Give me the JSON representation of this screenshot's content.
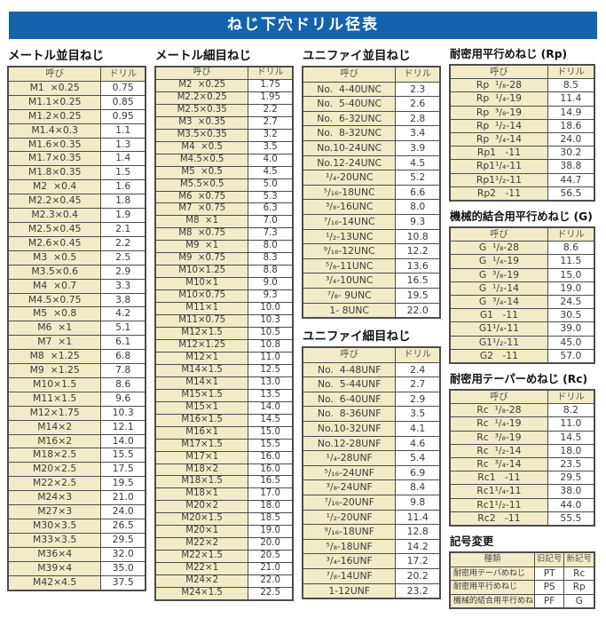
{
  "page_title": "ねじ下穴ドリル径表",
  "tables": {
    "metric_coarse": {
      "title": "メートル並目ねじ",
      "headers": [
        "呼び",
        "ドリル"
      ],
      "rows": [
        [
          "M1  ×0.25",
          "0.75"
        ],
        [
          "M1.1×0.25",
          "0.85"
        ],
        [
          "M1.2×0.25",
          "0.95"
        ],
        [
          "M1.4×0.3",
          "1.1"
        ],
        [
          "M1.6×0.35",
          "1.3"
        ],
        [
          "M1.7×0.35",
          "1.4"
        ],
        [
          "M1.8×0.35",
          "1.5"
        ],
        [
          "M2  ×0.4",
          "1.6"
        ],
        [
          "M2.2×0.45",
          "1.8"
        ],
        [
          "M2.3×0.4",
          "1.9"
        ],
        [
          "M2.5×0.45",
          "2.1"
        ],
        [
          "M2.6×0.45",
          "2.2"
        ],
        [
          "M3  ×0.5",
          "2.5"
        ],
        [
          "M3.5×0.6",
          "2.9"
        ],
        [
          "M4  ×0.7",
          "3.3"
        ],
        [
          "M4.5×0.75",
          "3.8"
        ],
        [
          "M5  ×0.8",
          "4.2"
        ],
        [
          "M6  ×1",
          "5.1"
        ],
        [
          "M7  ×1",
          "6.1"
        ],
        [
          "M8  ×1.25",
          "6.8"
        ],
        [
          "M9  ×1.25",
          "7.8"
        ],
        [
          "M10×1.5",
          "8.6"
        ],
        [
          "M11×1.5",
          "9.6"
        ],
        [
          "M12×1.75",
          "10.3"
        ],
        [
          "M14×2",
          "12.1"
        ],
        [
          "M16×2",
          "14.0"
        ],
        [
          "M18×2.5",
          "15.5"
        ],
        [
          "M20×2.5",
          "17.5"
        ],
        [
          "M22×2.5",
          "19.5"
        ],
        [
          "M24×3",
          "21.0"
        ],
        [
          "M27×3",
          "24.0"
        ],
        [
          "M30×3.5",
          "26.5"
        ],
        [
          "M33×3.5",
          "29.5"
        ],
        [
          "M36×4",
          "32.0"
        ],
        [
          "M39×4",
          "35.0"
        ],
        [
          "M42×4.5",
          "37.5"
        ]
      ]
    },
    "metric_fine": {
      "title": "メートル細目ねじ",
      "headers": [
        "呼び",
        "ドリル"
      ],
      "rows": [
        [
          "M2  ×0.25",
          "1.75"
        ],
        [
          "M2.2×0.25",
          "1.95"
        ],
        [
          "M2.5×0.35",
          "2.2"
        ],
        [
          "M3  ×0.35",
          "2.7"
        ],
        [
          "M3.5×0.35",
          "3.2"
        ],
        [
          "M4  ×0.5",
          "3.5"
        ],
        [
          "M4.5×0.5",
          "4.0"
        ],
        [
          "M5  ×0.5",
          "4.5"
        ],
        [
          "M5.5×0.5",
          "5.0"
        ],
        [
          "M6  ×0.75",
          "5.3"
        ],
        [
          "M7  ×0.75",
          "6.3"
        ],
        [
          "M8  ×1",
          "7.0"
        ],
        [
          "M8  ×0.75",
          "7.3"
        ],
        [
          "M9  ×1",
          "8.0"
        ],
        [
          "M9  ×0.75",
          "8.3"
        ],
        [
          "M10×1.25",
          "8.8"
        ],
        [
          "M10×1",
          "9.0"
        ],
        [
          "M10×0.75",
          "9.3"
        ],
        [
          "M11×1",
          "10.0"
        ],
        [
          "M11×0.75",
          "10.3"
        ],
        [
          "M12×1.5",
          "10.5"
        ],
        [
          "M12×1.25",
          "10.8"
        ],
        [
          "M12×1",
          "11.0"
        ],
        [
          "M14×1.5",
          "12.5"
        ],
        [
          "M14×1",
          "13.0"
        ],
        [
          "M15×1.5",
          "13.5"
        ],
        [
          "M15×1",
          "14.0"
        ],
        [
          "M16×1.5",
          "14.5"
        ],
        [
          "M16×1",
          "15.0"
        ],
        [
          "M17×1.5",
          "15.5"
        ],
        [
          "M17×1",
          "16.0"
        ],
        [
          "M18×2",
          "16.0"
        ],
        [
          "M18×1.5",
          "16.5"
        ],
        [
          "M18×1",
          "17.0"
        ],
        [
          "M20×2",
          "18.0"
        ],
        [
          "M20×1.5",
          "18.5"
        ],
        [
          "M20×1",
          "19.0"
        ],
        [
          "M22×2",
          "20.0"
        ],
        [
          "M22×1.5",
          "20.5"
        ],
        [
          "M22×1",
          "21.0"
        ],
        [
          "M24×2",
          "22.0"
        ],
        [
          "M24×1.5",
          "22.5"
        ]
      ]
    },
    "unified_coarse": {
      "title": "ユニファイ並目ねじ",
      "headers": [
        "呼び",
        "ドリル"
      ],
      "rows": [
        [
          "No.  4-40UNC",
          "2.3"
        ],
        [
          "No.  5-40UNC",
          "2.6"
        ],
        [
          "No.  6-32UNC",
          "2.8"
        ],
        [
          "No.  8-32UNC",
          "3.4"
        ],
        [
          "No.10-24UNC",
          "3.9"
        ],
        [
          "No.12-24UNC",
          "4.5"
        ],
        [
          "¹/₄-20UNC",
          "5.2"
        ],
        [
          "⁵/₁₆-18UNC",
          "6.6"
        ],
        [
          "³/₈-16UNC",
          "8.0"
        ],
        [
          "⁷/₁₆-14UNC",
          "9.3"
        ],
        [
          "¹/₂-13UNC",
          "10.8"
        ],
        [
          "⁹/₁₆-12UNC",
          "12.2"
        ],
        [
          "⁵/₈-11UNC",
          "13.6"
        ],
        [
          "³/₄-10UNC",
          "16.5"
        ],
        [
          "⁷/₈- 9UNC",
          "19.5"
        ],
        [
          "1- 8UNC",
          "22.0"
        ]
      ]
    },
    "unified_fine": {
      "title": "ユニファイ細目ねじ",
      "headers": [
        "呼び",
        "ドリル"
      ],
      "rows": [
        [
          "No.  4-48UNF",
          "2.4"
        ],
        [
          "No.  5-44UNF",
          "2.7"
        ],
        [
          "No.  6-40UNF",
          "2.9"
        ],
        [
          "No.  8-36UNF",
          "3.5"
        ],
        [
          "No.10-32UNF",
          "4.1"
        ],
        [
          "No.12-28UNF",
          "4.6"
        ],
        [
          "¹/₄-28UNF",
          "5.4"
        ],
        [
          "⁵/₁₆-24UNF",
          "6.9"
        ],
        [
          "³/₈-24UNF",
          "8.4"
        ],
        [
          "⁷/₁₆-20UNF",
          "9.8"
        ],
        [
          "¹/₂-20UNF",
          "11.4"
        ],
        [
          "⁹/₁₆-18UNF",
          "12.8"
        ],
        [
          "⁵/₈-18UNF",
          "14.2"
        ],
        [
          "³/₄-16UNF",
          "17.2"
        ],
        [
          "⁷/₈-14UNF",
          "20.2"
        ],
        [
          "1-12UNF",
          "23.2"
        ]
      ]
    },
    "rp": {
      "title": "耐密用平行めねじ (Rp)",
      "headers": [
        "呼び",
        "ドリル"
      ],
      "rows": [
        [
          "Rp  ¹/₈-28",
          "8.5"
        ],
        [
          "Rp  ¹/₄-19",
          "11.4"
        ],
        [
          "Rp  ³/₈-19",
          "14.9"
        ],
        [
          "Rp  ¹/₂-14",
          "18.6"
        ],
        [
          "Rp  ³/₄-14",
          "24.0"
        ],
        [
          "Rp1   -11",
          "30.2"
        ],
        [
          "Rp1¹/₄-11",
          "38.8"
        ],
        [
          "Rp1¹/₂-11",
          "44.7"
        ],
        [
          "Rp2   -11",
          "56.5"
        ]
      ]
    },
    "g": {
      "title": "機械的結合用平行めねじ (G)",
      "headers": [
        "呼び",
        "ドリル"
      ],
      "rows": [
        [
          "G  ¹/₈-28",
          "8.6"
        ],
        [
          "G  ¹/₄-19",
          "11.5"
        ],
        [
          "G  ³/₈-19",
          "15.0"
        ],
        [
          "G  ¹/₂-14",
          "19.0"
        ],
        [
          "G  ³/₄-14",
          "24.5"
        ],
        [
          "G1   -11",
          "30.5"
        ],
        [
          "G1¹/₄-11",
          "39.0"
        ],
        [
          "G1¹/₂-11",
          "45.0"
        ],
        [
          "G2   -11",
          "57.0"
        ]
      ]
    },
    "rc": {
      "title": "耐密用テーパーめねじ (Rc)",
      "headers": [
        "呼び",
        "ドリル"
      ],
      "rows": [
        [
          "Rc  ¹/₈-28",
          "8.2"
        ],
        [
          "Rc  ¹/₄-19",
          "11.0"
        ],
        [
          "Rc  ³/₈-19",
          "14.5"
        ],
        [
          "Rc  ¹/₂-14",
          "18.0"
        ],
        [
          "Rc  ³/₄-14",
          "23.5"
        ],
        [
          "Rc1   -11",
          "29.5"
        ],
        [
          "Rc1¹/₄-11",
          "38.0"
        ],
        [
          "Rc1¹/₂-11",
          "44.0"
        ],
        [
          "Rc2   -11",
          "55.5"
        ]
      ]
    },
    "symbol_change": {
      "title": "記号変更",
      "headers": [
        "種類",
        "旧記号",
        "新記号"
      ],
      "rows": [
        [
          "耐密用テーパめねじ",
          "PT",
          "Rc"
        ],
        [
          "耐密用平行めねじ",
          "PS",
          "Rp"
        ],
        [
          "機械的結合用平行めねじ",
          "PF",
          "G"
        ]
      ]
    }
  },
  "colors": {
    "banner_bg": "#1563ad",
    "banner_text": "#ffffff",
    "cell_cream": "#f1ecc7",
    "cell_white": "#ffffff",
    "border": "#4d4d4d"
  }
}
